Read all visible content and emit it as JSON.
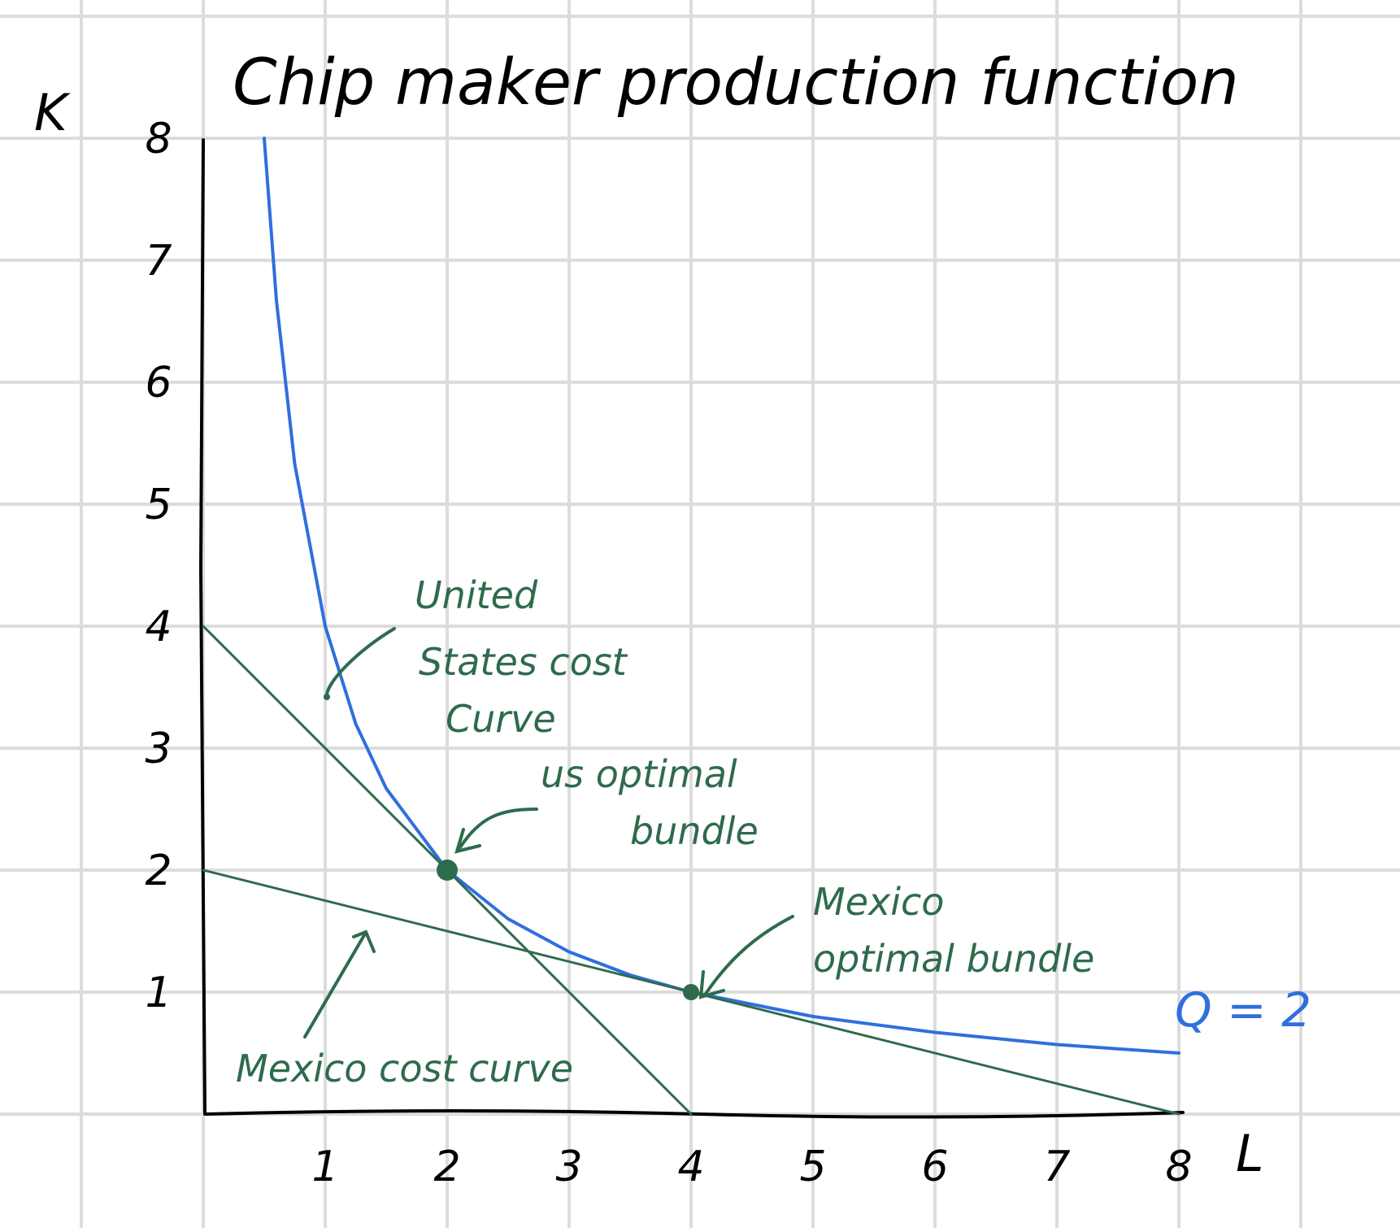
{
  "colors": {
    "isoquant": "#2f6fde",
    "cost_lines": "#2e6b4c",
    "axis": "#000000",
    "grid": "#dcdcdc"
  },
  "chart_data": {
    "type": "line",
    "title": "Chip maker production function",
    "xlabel": "L",
    "ylabel": "K",
    "xlim": [
      0,
      8
    ],
    "ylim": [
      0,
      8
    ],
    "x_ticks": [
      "1",
      "2",
      "3",
      "4",
      "5",
      "6",
      "7",
      "8"
    ],
    "y_ticks": [
      "1",
      "2",
      "3",
      "4",
      "5",
      "6",
      "7",
      "8"
    ],
    "grid": true,
    "series": [
      {
        "name": "Q = 2",
        "kind": "isoquant",
        "x": [
          0.5,
          0.6,
          0.75,
          1,
          1.25,
          1.5,
          2,
          2.5,
          3,
          3.5,
          4,
          5,
          6,
          7,
          8
        ],
        "y": [
          8,
          6.67,
          5.33,
          4,
          3.2,
          2.67,
          2,
          1.6,
          1.33,
          1.14,
          1,
          0.8,
          0.67,
          0.57,
          0.5
        ]
      },
      {
        "name": "United States cost curve",
        "kind": "isocost",
        "x": [
          0,
          4
        ],
        "y": [
          4,
          0
        ]
      },
      {
        "name": "Mexico cost curve",
        "kind": "isocost",
        "x": [
          0,
          8
        ],
        "y": [
          2,
          0
        ]
      }
    ],
    "points": [
      {
        "name": "us optimal bundle",
        "x": 2,
        "y": 2
      },
      {
        "name": "Mexico optimal bundle",
        "x": 4,
        "y": 1
      }
    ],
    "annotations": {
      "united_states_line1": "United",
      "united_states_line2": "States cost",
      "united_states_line3": "Curve",
      "us_optimal_line1": "us optimal",
      "us_optimal_line2": "bundle",
      "mexico_optimal_line1": "Mexico",
      "mexico_optimal_line2": "optimal bundle",
      "mexico_cost": "Mexico cost curve",
      "isoquant_label": "Q = 2"
    }
  }
}
